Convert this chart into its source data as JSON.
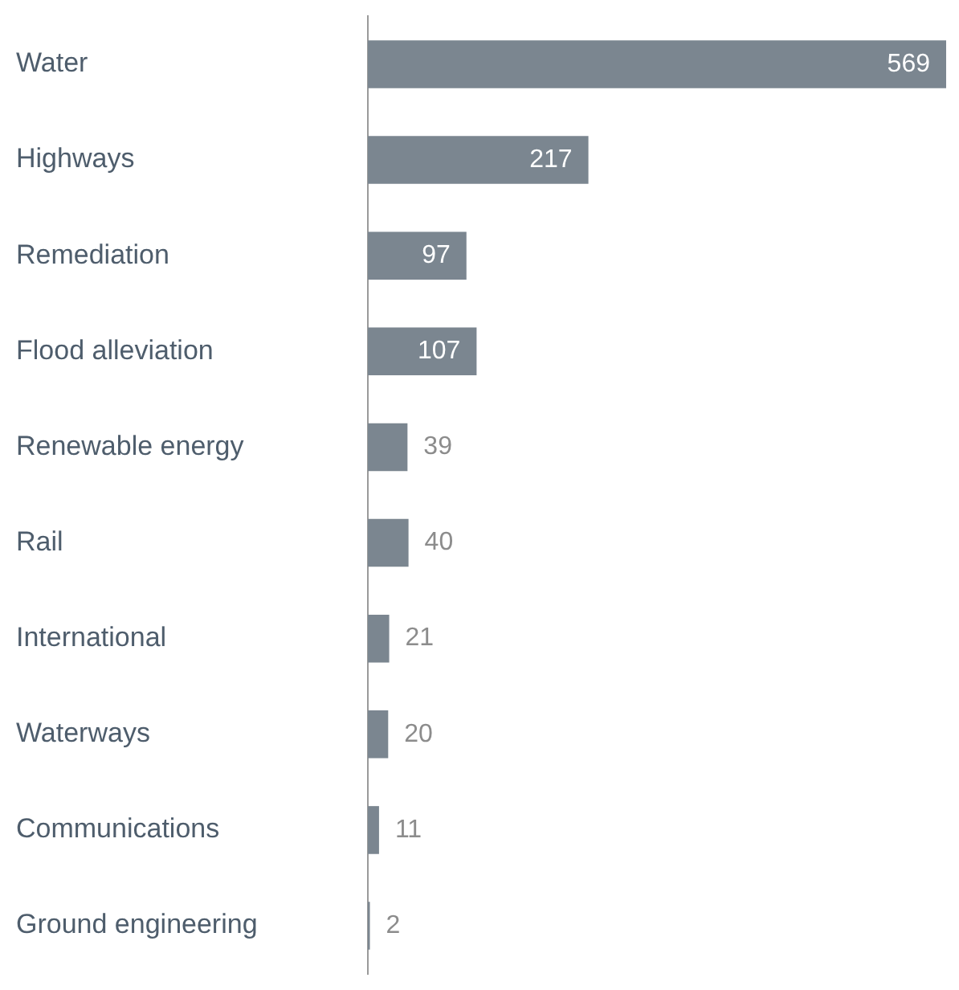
{
  "chart_data": {
    "type": "bar",
    "orientation": "horizontal",
    "categories": [
      "Water",
      "Highways",
      "Remediation",
      "Flood alleviation",
      "Renewable energy",
      "Rail",
      "International",
      "Waterways",
      "Communications",
      "Ground engineering"
    ],
    "values": [
      569,
      217,
      97,
      107,
      39,
      40,
      21,
      20,
      11,
      2
    ],
    "color": "#7b8690",
    "data_labels": true,
    "grid": false,
    "legend": false
  }
}
